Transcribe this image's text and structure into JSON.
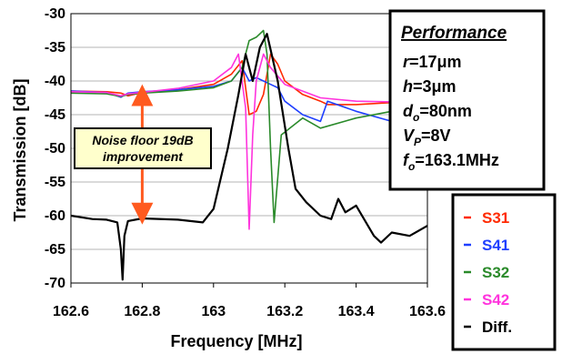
{
  "chart_data": {
    "type": "line",
    "xlabel": "Frequency [MHz]",
    "ylabel": "Transmission [dB]",
    "xlim": [
      162.6,
      163.6
    ],
    "ylim": [
      -70,
      -30
    ],
    "x_ticks": [
      "162.6",
      "162.8",
      "163",
      "163.2",
      "163.4",
      "163.6"
    ],
    "y_ticks": [
      "-30",
      "-35",
      "-40",
      "-45",
      "-50",
      "-55",
      "-60",
      "-65",
      "-70"
    ],
    "grid": "horizontal",
    "series": [
      {
        "name": "S31",
        "color": "#ff2a00",
        "x": [
          162.6,
          162.7,
          162.74,
          162.76,
          162.8,
          162.9,
          163.0,
          163.05,
          163.08,
          163.1,
          163.12,
          163.14,
          163.16,
          163.18,
          163.2,
          163.25,
          163.3,
          163.32,
          163.4,
          163.5,
          163.6
        ],
        "y": [
          -41.5,
          -41.6,
          -41.8,
          -42.2,
          -41.7,
          -41.3,
          -40.5,
          -39,
          -37,
          -45,
          -44.5,
          -42,
          -36,
          -37.5,
          -40,
          -42,
          -43,
          -43.5,
          -43.5,
          -43.2,
          -42.6
        ]
      },
      {
        "name": "S41",
        "color": "#1f3fff",
        "x": [
          162.6,
          162.7,
          162.74,
          162.76,
          162.8,
          162.9,
          163.0,
          163.05,
          163.08,
          163.1,
          163.12,
          163.14,
          163.16,
          163.18,
          163.2,
          163.25,
          163.3,
          163.32,
          163.4,
          163.5,
          163.6
        ],
        "y": [
          -41.5,
          -41.7,
          -42.4,
          -41.8,
          -41.6,
          -41.3,
          -40.8,
          -40,
          -38,
          -40,
          -39.5,
          -40,
          -40.5,
          -41,
          -43,
          -45,
          -46,
          -43,
          -44.5,
          -46,
          -45.5
        ]
      },
      {
        "name": "S32",
        "color": "#2a8a2a",
        "x": [
          162.6,
          162.7,
          162.74,
          162.76,
          162.8,
          162.9,
          163.0,
          163.05,
          163.08,
          163.1,
          163.12,
          163.14,
          163.15,
          163.16,
          163.17,
          163.19,
          163.25,
          163.3,
          163.4,
          163.5,
          163.6
        ],
        "y": [
          -41.8,
          -41.9,
          -42.3,
          -42,
          -41.8,
          -41.5,
          -41,
          -40,
          -38,
          -34,
          -33.5,
          -32.5,
          -36,
          -50,
          -61,
          -48,
          -45.5,
          -47,
          -45.5,
          -44.5,
          -44
        ]
      },
      {
        "name": "S42",
        "color": "#ff33dd",
        "x": [
          162.6,
          162.7,
          162.74,
          162.76,
          162.8,
          162.9,
          163.0,
          163.05,
          163.07,
          163.09,
          163.1,
          163.11,
          163.12,
          163.14,
          163.16,
          163.2,
          163.3,
          163.4,
          163.5,
          163.6
        ],
        "y": [
          -41.6,
          -41.7,
          -42.2,
          -41.9,
          -41.7,
          -41.1,
          -40,
          -38,
          -36,
          -44,
          -62,
          -48,
          -40,
          -36,
          -38,
          -40.5,
          -42.5,
          -43,
          -43.1,
          -43.2
        ]
      },
      {
        "name": "Diff.",
        "color": "#000000",
        "x": [
          162.6,
          162.66,
          162.7,
          162.73,
          162.74,
          162.745,
          162.75,
          162.76,
          162.8,
          162.9,
          162.97,
          163.0,
          163.04,
          163.07,
          163.09,
          163.11,
          163.13,
          163.15,
          163.18,
          163.21,
          163.23,
          163.26,
          163.3,
          163.33,
          163.35,
          163.37,
          163.4,
          163.45,
          163.47,
          163.5,
          163.55,
          163.6
        ],
        "y": [
          -60,
          -60.5,
          -60.6,
          -61,
          -65,
          -69.5,
          -63,
          -60.8,
          -60.4,
          -60.6,
          -61,
          -59,
          -50,
          -42,
          -36,
          -40,
          -35,
          -33,
          -40,
          -50,
          -56,
          -58,
          -60,
          -60.5,
          -57.5,
          -59.5,
          -58.5,
          -63,
          -64,
          -62.5,
          -63,
          -61.5
        ]
      }
    ],
    "annotation": {
      "line1": "Noise floor 19dB",
      "line2": "improvement",
      "arrow_x": 162.8,
      "arrow_from": -41.3,
      "arrow_to": -60.5
    }
  },
  "performance": {
    "title": "Performance",
    "lines": [
      {
        "var": "r",
        "sub": "",
        "val": "=17μm"
      },
      {
        "var": "h",
        "sub": "",
        "val": "=3μm"
      },
      {
        "var": "d",
        "sub": "o",
        "val": "=80nm"
      },
      {
        "var": "V",
        "sub": "P",
        "val": "=8V"
      },
      {
        "var": "f",
        "sub": "o",
        "val": "=163.1MHz"
      }
    ]
  },
  "legend": [
    {
      "label": "S31",
      "color": "#ff2a00"
    },
    {
      "label": "S41",
      "color": "#1f3fff"
    },
    {
      "label": "S32",
      "color": "#2a8a2a"
    },
    {
      "label": "S42",
      "color": "#ff33dd"
    },
    {
      "label": "Diff.",
      "color": "#000000"
    }
  ]
}
